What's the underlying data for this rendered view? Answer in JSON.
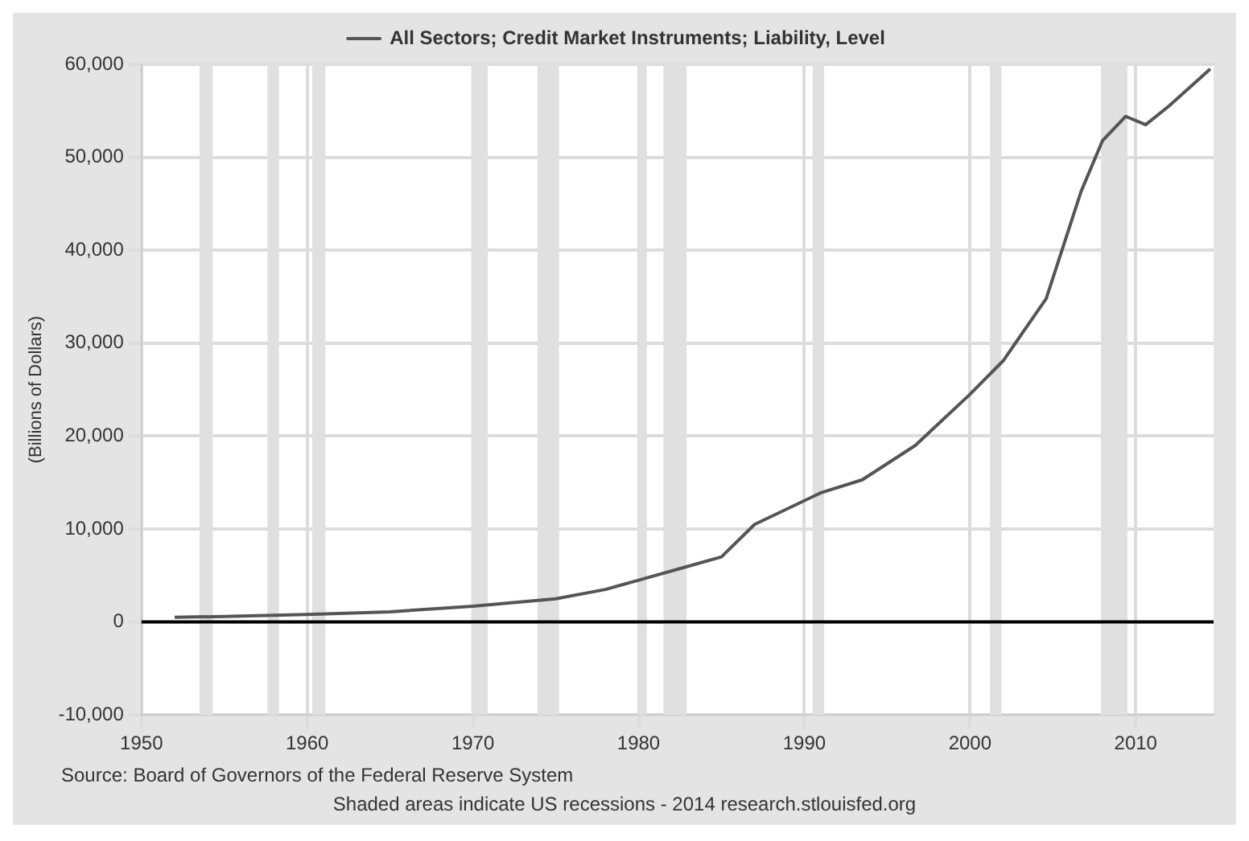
{
  "chart_data": {
    "type": "line",
    "x": [
      1952,
      1955,
      1960,
      1965,
      1970,
      1975,
      1978,
      1980,
      1983,
      1985,
      1987,
      1991,
      1993.5,
      1996.7,
      1998.5,
      2000,
      2002,
      2004.6,
      2006.7,
      2008,
      2009.4,
      2010.6,
      2012,
      2014.5
    ],
    "series": [
      {
        "name": "All Sectors; Credit Market Instruments; Liability, Level",
        "color": "#555555",
        "values": [
          500,
          600,
          800,
          1100,
          1700,
          2500,
          3500,
          4500,
          6000,
          7000,
          10500,
          13900,
          15300,
          19000,
          22000,
          24500,
          28100,
          34800,
          46300,
          51800,
          54400,
          53500,
          55500,
          59500
        ]
      }
    ],
    "ylabel": "(Billions of Dollars)",
    "xlim": [
      1950,
      2014.7
    ],
    "xticks": [
      1950,
      1960,
      1970,
      1980,
      1990,
      2000,
      2010
    ],
    "ylim": [
      -10000,
      60000
    ],
    "yticks": [
      {
        "value": -10000,
        "label": "-10,000"
      },
      0,
      {
        "value": 10000,
        "label": "10,000"
      },
      {
        "value": 20000,
        "label": "20,000"
      },
      {
        "value": 30000,
        "label": "30,000"
      },
      {
        "value": 40000,
        "label": "40,000"
      },
      {
        "value": 50000,
        "label": "50,000"
      },
      {
        "value": 60000,
        "label": "60,000"
      }
    ],
    "grid": true,
    "legend": "top",
    "marker": "none",
    "line_style": "solid",
    "ref_lines": [
      {
        "axis": "y",
        "value": 0,
        "color": "#000000"
      }
    ],
    "bands": [
      {
        "axis": "x",
        "from": 1953.5,
        "to": 1954.3,
        "color": "#e0e0e0"
      },
      {
        "axis": "x",
        "from": 1957.6,
        "to": 1958.3,
        "color": "#e0e0e0"
      },
      {
        "axis": "x",
        "from": 1960.3,
        "to": 1961.1,
        "color": "#e0e0e0"
      },
      {
        "axis": "x",
        "from": 1969.9,
        "to": 1970.9,
        "color": "#e0e0e0"
      },
      {
        "axis": "x",
        "from": 1973.9,
        "to": 1975.2,
        "color": "#e0e0e0"
      },
      {
        "axis": "x",
        "from": 1980.0,
        "to": 1980.5,
        "color": "#e0e0e0"
      },
      {
        "axis": "x",
        "from": 1981.5,
        "to": 1982.9,
        "color": "#e0e0e0"
      },
      {
        "axis": "x",
        "from": 1990.5,
        "to": 1991.2,
        "color": "#e0e0e0"
      },
      {
        "axis": "x",
        "from": 2001.2,
        "to": 2001.9,
        "color": "#e0e0e0"
      },
      {
        "axis": "x",
        "from": 2007.9,
        "to": 2009.5,
        "color": "#e0e0e0"
      }
    ],
    "annotations": [
      "Source: Board of Governors of the Federal Reserve System",
      "Shaded areas indicate US recessions - 2014 research.stlouisfed.org"
    ]
  }
}
